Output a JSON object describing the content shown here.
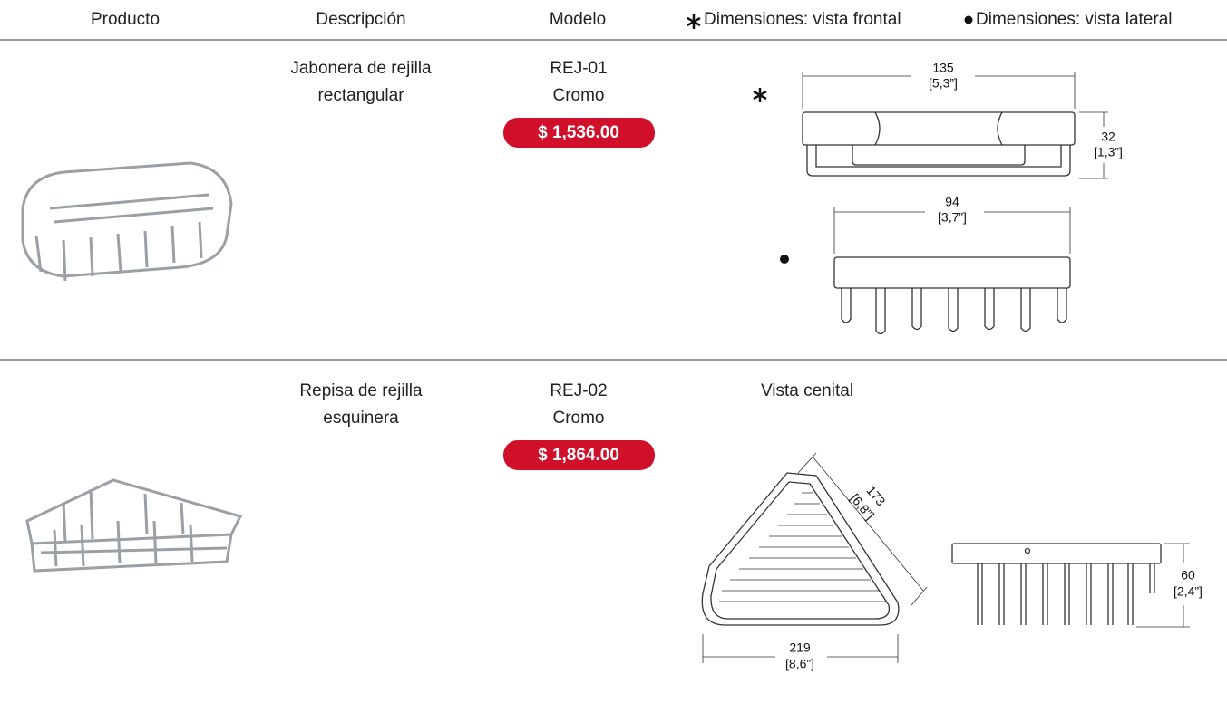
{
  "header": {
    "columns": [
      "Producto",
      "Descripción",
      "Modelo",
      "Dimensiones: vista frontal",
      "Dimensiones: vista lateral"
    ]
  },
  "products": [
    {
      "description": [
        "Jabonera de rejilla",
        "rectangular"
      ],
      "model": "REJ-01",
      "finish": "Cromo",
      "price": "$ 1,536.00",
      "dimensions": {
        "front_width": "135",
        "front_width_in": "[5,3”]",
        "front_height": "32",
        "front_height_in": "[1,3”]",
        "side_width": "94",
        "side_width_in": "[3,7”]"
      }
    },
    {
      "description": [
        "Repisa de rejilla",
        "esquinera"
      ],
      "model": "REJ-02",
      "finish": "Cromo",
      "price": "$ 1,864.00",
      "view_label": "Vista cenital",
      "dimensions": {
        "side": "173",
        "side_in": "[6,8”]",
        "width": "219",
        "width_in": "[8,6”]",
        "height": "60",
        "height_in": "[2,4”]"
      }
    }
  ]
}
